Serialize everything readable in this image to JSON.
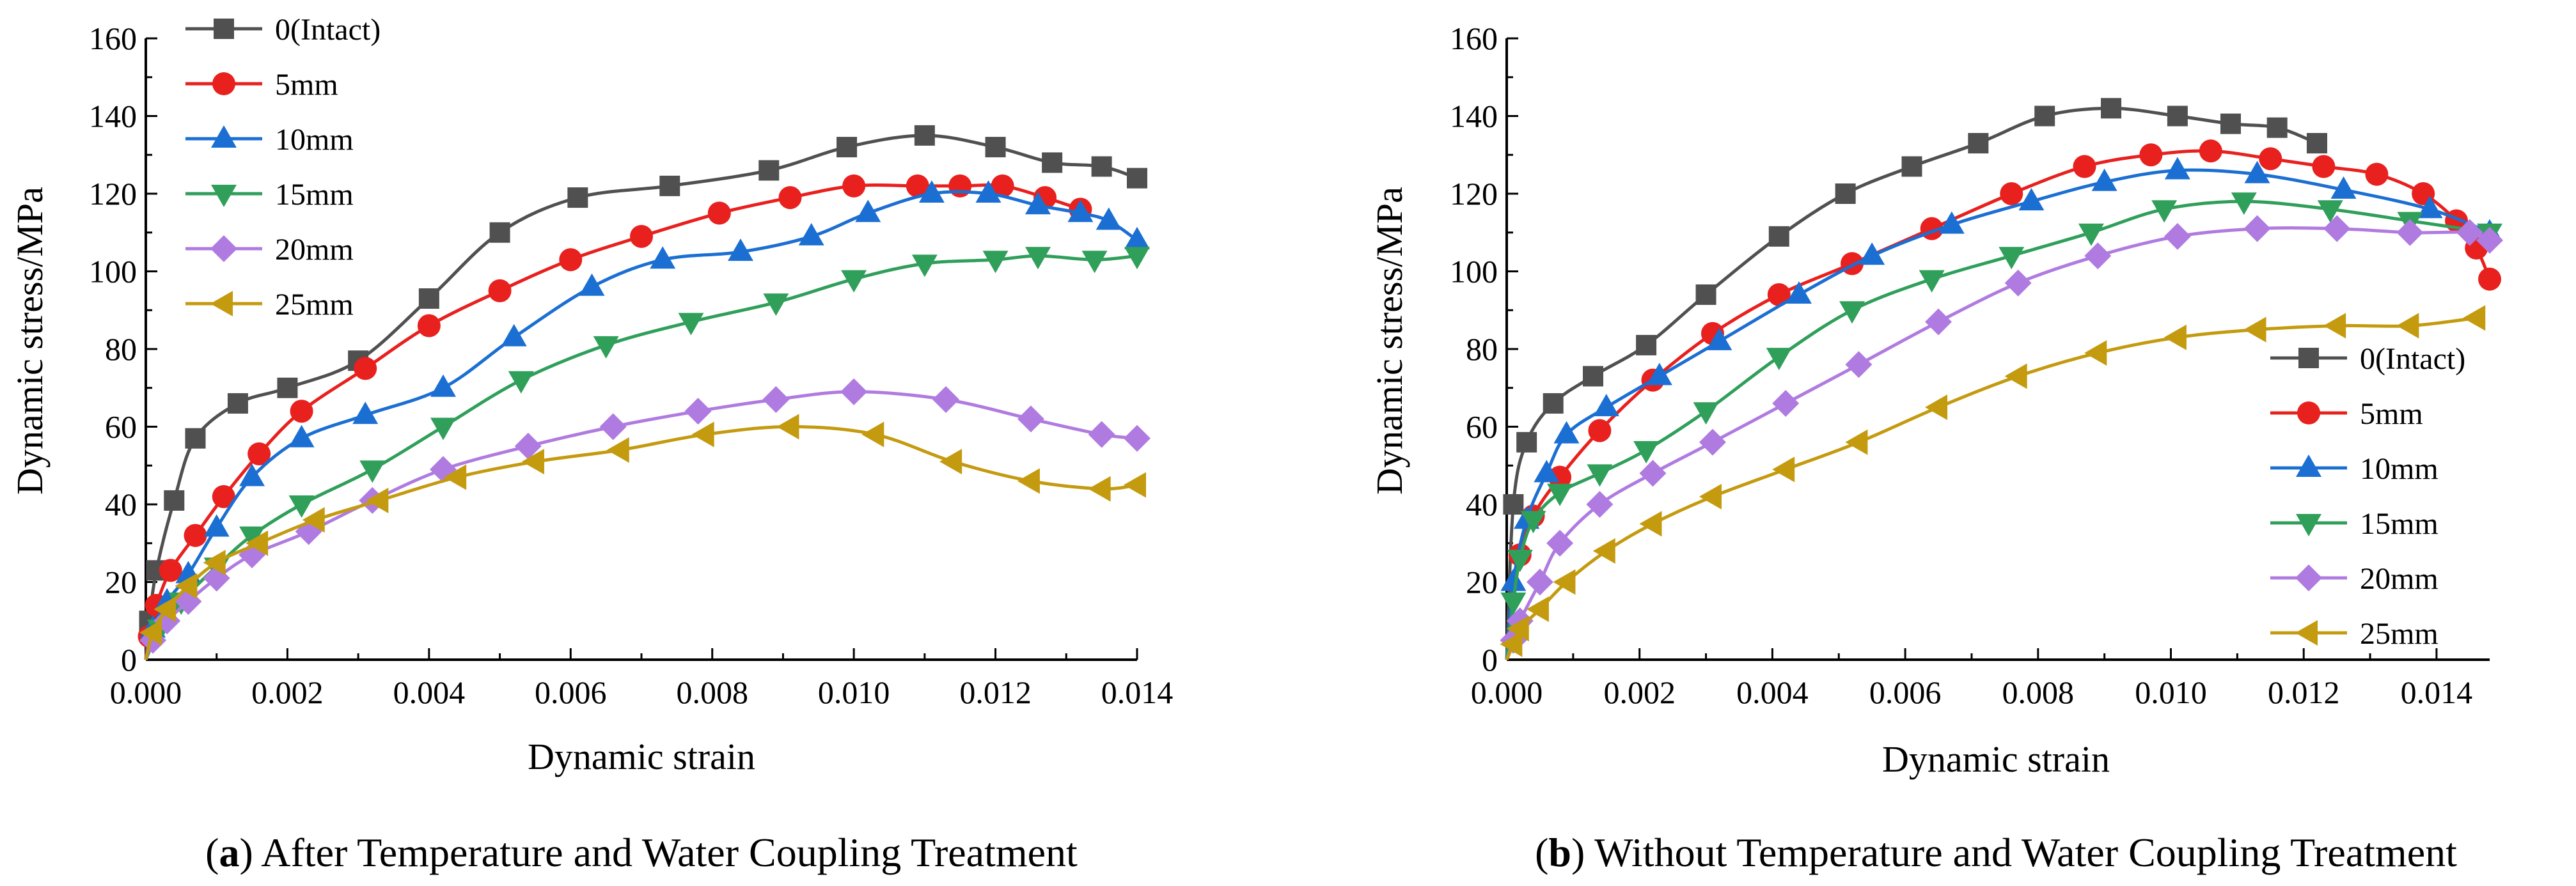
{
  "chart_data": [
    {
      "type": "line",
      "title": "",
      "caption_letter": "a",
      "caption_rest": " After Temperature and Water Coupling Treatment",
      "xlabel": "Dynamic strain",
      "ylabel": "Dynamic stress/MPa",
      "xlim": [
        0.0,
        0.014
      ],
      "ylim": [
        0,
        160
      ],
      "xticks": [
        0.0,
        0.002,
        0.004,
        0.006,
        0.008,
        0.01,
        0.012,
        0.014
      ],
      "xtick_labels": [
        "0.000",
        "0.002",
        "0.004",
        "0.006",
        "0.008",
        "0.010",
        "0.012",
        "0.014"
      ],
      "yticks": [
        0,
        20,
        40,
        60,
        80,
        100,
        120,
        140,
        160
      ],
      "ytick_labels": [
        "0",
        "20",
        "40",
        "60",
        "80",
        "100",
        "120",
        "140",
        "160"
      ],
      "legend_position": "top-left",
      "series": [
        {
          "name": "0(Intact)",
          "color": "#505050",
          "marker": "square",
          "x": [
            0.0,
            5e-05,
            0.00015,
            0.0004,
            0.0007,
            0.0013,
            0.002,
            0.003,
            0.004,
            0.005,
            0.0061,
            0.0074,
            0.0088,
            0.0099,
            0.011,
            0.012,
            0.0128,
            0.0135,
            0.014
          ],
          "y": [
            0,
            10,
            23,
            41,
            57,
            66,
            70,
            77,
            93,
            110,
            119,
            122,
            126,
            132,
            135,
            132,
            128,
            127,
            124
          ]
        },
        {
          "name": "5mm",
          "color": "#e8201e",
          "marker": "circle",
          "x": [
            0.0,
            5e-05,
            0.00015,
            0.00035,
            0.0007,
            0.0011,
            0.0016,
            0.0022,
            0.0031,
            0.004,
            0.005,
            0.006,
            0.007,
            0.0081,
            0.0091,
            0.01,
            0.0109,
            0.0115,
            0.0121,
            0.0127,
            0.0132
          ],
          "y": [
            0,
            6,
            14,
            23,
            32,
            42,
            53,
            64,
            75,
            86,
            95,
            103,
            109,
            115,
            119,
            122,
            122,
            122,
            122,
            119,
            116
          ]
        },
        {
          "name": "10mm",
          "color": "#1b6fd3",
          "marker": "triangle-up",
          "x": [
            0.0,
            0.0001,
            0.0003,
            0.0006,
            0.001,
            0.0015,
            0.0022,
            0.0031,
            0.0042,
            0.0052,
            0.0063,
            0.0073,
            0.0084,
            0.0094,
            0.0102,
            0.0111,
            0.0119,
            0.0126,
            0.0132,
            0.0136,
            0.014
          ],
          "y": [
            0,
            8,
            15,
            22,
            34,
            47,
            57,
            63,
            70,
            83,
            96,
            103,
            105,
            109,
            115,
            120,
            120,
            117,
            115,
            113,
            108
          ]
        },
        {
          "name": "15mm",
          "color": "#2f9f5a",
          "marker": "triangle-down",
          "x": [
            0.0,
            0.0002,
            0.0005,
            0.001,
            0.0015,
            0.0022,
            0.0032,
            0.0042,
            0.0053,
            0.0065,
            0.0077,
            0.0089,
            0.01,
            0.011,
            0.012,
            0.0126,
            0.0134,
            0.014
          ],
          "y": [
            0,
            8,
            15,
            24,
            32,
            40,
            49,
            60,
            72,
            81,
            87,
            92,
            98,
            102,
            103,
            104,
            103,
            104
          ]
        },
        {
          "name": "20mm",
          "color": "#b07be0",
          "marker": "diamond",
          "x": [
            0.0,
            0.0001,
            0.0003,
            0.0006,
            0.001,
            0.0015,
            0.0023,
            0.0032,
            0.0042,
            0.0054,
            0.0066,
            0.0078,
            0.0089,
            0.01,
            0.0113,
            0.0125,
            0.0135,
            0.014
          ],
          "y": [
            0,
            5,
            10,
            15,
            21,
            27,
            33,
            41,
            49,
            55,
            60,
            64,
            67,
            69,
            67,
            62,
            58,
            57
          ]
        },
        {
          "name": "25mm",
          "color": "#c49a0e",
          "marker": "triangle-left",
          "x": [
            0.0,
            0.0001,
            0.0003,
            0.0006,
            0.001,
            0.0016,
            0.0024,
            0.0033,
            0.0044,
            0.0055,
            0.0067,
            0.0079,
            0.0091,
            0.0103,
            0.0114,
            0.0125,
            0.0135,
            0.014
          ],
          "y": [
            0,
            7,
            13,
            19,
            25,
            30,
            36,
            41,
            47,
            51,
            54,
            58,
            60,
            58,
            51,
            46,
            44,
            45
          ]
        }
      ]
    },
    {
      "type": "line",
      "title": "",
      "caption_letter": "b",
      "caption_rest": " Without Temperature and Water Coupling Treatment",
      "xlabel": "Dynamic strain",
      "ylabel": "Dynamic stress/MPa",
      "xlim": [
        0.0,
        0.0148
      ],
      "ylim": [
        0,
        160
      ],
      "xticks": [
        0.0,
        0.002,
        0.004,
        0.006,
        0.008,
        0.01,
        0.012,
        0.014
      ],
      "xtick_labels": [
        "0.000",
        "0.002",
        "0.004",
        "0.006",
        "0.008",
        "0.010",
        "0.012",
        "0.014"
      ],
      "yticks": [
        0,
        20,
        40,
        60,
        80,
        100,
        120,
        140,
        160
      ],
      "ytick_labels": [
        "0",
        "20",
        "40",
        "60",
        "80",
        "100",
        "120",
        "140",
        "160"
      ],
      "legend_position": "center-right",
      "series": [
        {
          "name": "0(Intact)",
          "color": "#505050",
          "marker": "square",
          "x": [
            0.0,
            0.0001,
            0.0003,
            0.0007,
            0.0013,
            0.0021,
            0.003,
            0.0041,
            0.0051,
            0.0061,
            0.0071,
            0.0081,
            0.0091,
            0.0101,
            0.0109,
            0.0116,
            0.0122
          ],
          "y": [
            0,
            40,
            56,
            66,
            73,
            81,
            94,
            109,
            120,
            127,
            133,
            140,
            142,
            140,
            138,
            137,
            133
          ]
        },
        {
          "name": "5mm",
          "color": "#e8201e",
          "marker": "circle",
          "x": [
            0.0,
            0.0002,
            0.0004,
            0.0008,
            0.0014,
            0.0022,
            0.0031,
            0.0041,
            0.0052,
            0.0064,
            0.0076,
            0.0087,
            0.0097,
            0.0106,
            0.0115,
            0.0123,
            0.0131,
            0.0138,
            0.0143,
            0.0146,
            0.0148
          ],
          "y": [
            0,
            27,
            37,
            47,
            59,
            72,
            84,
            94,
            102,
            111,
            120,
            127,
            130,
            131,
            129,
            127,
            125,
            120,
            113,
            106,
            98
          ]
        },
        {
          "name": "10mm",
          "color": "#1b6fd3",
          "marker": "triangle-up",
          "x": [
            0.0,
            0.0001,
            0.0003,
            0.0006,
            0.0009,
            0.0015,
            0.0023,
            0.0032,
            0.0044,
            0.0055,
            0.0067,
            0.0079,
            0.009,
            0.0101,
            0.0113,
            0.0126,
            0.0139,
            0.0148
          ],
          "y": [
            0,
            20,
            36,
            48,
            58,
            65,
            73,
            82,
            94,
            104,
            112,
            118,
            123,
            126,
            125,
            121,
            116,
            110
          ]
        },
        {
          "name": "15mm",
          "color": "#2f9f5a",
          "marker": "triangle-down",
          "x": [
            0.0,
            0.0001,
            0.0002,
            0.0004,
            0.0008,
            0.0014,
            0.0021,
            0.003,
            0.0041,
            0.0052,
            0.0064,
            0.0076,
            0.0088,
            0.0099,
            0.0111,
            0.0124,
            0.0136,
            0.0148
          ],
          "y": [
            0,
            15,
            26,
            36,
            43,
            48,
            54,
            64,
            78,
            90,
            98,
            104,
            110,
            116,
            118,
            116,
            113,
            110
          ]
        },
        {
          "name": "20mm",
          "color": "#b07be0",
          "marker": "diamond",
          "x": [
            0.0,
            0.0001,
            0.0002,
            0.0005,
            0.0008,
            0.0014,
            0.0022,
            0.0031,
            0.0042,
            0.0053,
            0.0065,
            0.0077,
            0.0089,
            0.0101,
            0.0113,
            0.0125,
            0.0136,
            0.0145,
            0.0148
          ],
          "y": [
            0,
            5,
            10,
            20,
            30,
            40,
            48,
            56,
            66,
            76,
            87,
            97,
            104,
            109,
            111,
            111,
            110,
            110,
            108
          ]
        },
        {
          "name": "25mm",
          "color": "#c49a0e",
          "marker": "triangle-left",
          "x": [
            0.0,
            0.0001,
            0.0002,
            0.0005,
            0.0009,
            0.0015,
            0.0022,
            0.0031,
            0.0042,
            0.0053,
            0.0065,
            0.0077,
            0.0089,
            0.0101,
            0.0113,
            0.0125,
            0.0136,
            0.0146
          ],
          "y": [
            0,
            4,
            8,
            13,
            20,
            28,
            35,
            42,
            49,
            56,
            65,
            73,
            79,
            83,
            85,
            86,
            86,
            88
          ]
        }
      ]
    }
  ]
}
